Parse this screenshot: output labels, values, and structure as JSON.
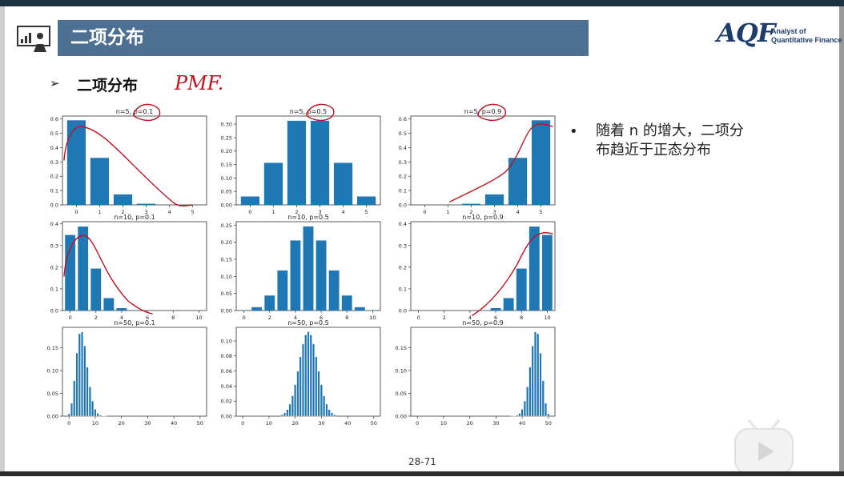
{
  "header": {
    "title": "二项分布"
  },
  "logo": {
    "big_text": "AQF",
    "line1": "Analyst of",
    "line2": "Quantitative Finance"
  },
  "section": {
    "title": "二项分布",
    "handwriting": "PMF."
  },
  "bullet": {
    "text": "随着 n 的增大，二项分布趋近于正态分布"
  },
  "page": {
    "number": "28-71"
  },
  "icons": {
    "presentation": "presentation-board-icon",
    "play": "play-icon",
    "bullet": "bullet-dot-icon"
  },
  "colors": {
    "banner": "#4d6f92",
    "bar": "#1f77b4",
    "ink": "#c0111f"
  },
  "chart_data": [
    {
      "type": "bar",
      "title": "n=5, p=0.1",
      "x": [
        0,
        1,
        2,
        3,
        4,
        5
      ],
      "values": [
        0.5905,
        0.3281,
        0.0729,
        0.0081,
        0.0005,
        0.0
      ],
      "xticks": [
        "0",
        "1",
        "2",
        "3",
        "4",
        "5"
      ],
      "ylim": [
        0,
        0.62
      ],
      "yticks": [
        0.0,
        0.1,
        0.2,
        0.3,
        0.4,
        0.5,
        0.6
      ],
      "ytick_labels": [
        "0.0",
        "0.1",
        "0.2",
        "0.3",
        "0.4",
        "0.5",
        "0.6"
      ]
    },
    {
      "type": "bar",
      "title": "n=5, p=0.5",
      "x": [
        0,
        1,
        2,
        3,
        4,
        5
      ],
      "values": [
        0.03125,
        0.15625,
        0.3125,
        0.3125,
        0.15625,
        0.03125
      ],
      "xticks": [
        "0",
        "1",
        "2",
        "3",
        "4",
        "5"
      ],
      "ylim": [
        0,
        0.33
      ],
      "yticks": [
        0.0,
        0.05,
        0.1,
        0.15,
        0.2,
        0.25,
        0.3
      ],
      "ytick_labels": [
        "0.00",
        "0.05",
        "0.10",
        "0.15",
        "0.20",
        "0.25",
        "0.30"
      ]
    },
    {
      "type": "bar",
      "title": "n=5, p=0.9",
      "x": [
        0,
        1,
        2,
        3,
        4,
        5
      ],
      "values": [
        0.0,
        0.0005,
        0.0081,
        0.0729,
        0.3281,
        0.5905
      ],
      "xticks": [
        "0",
        "1",
        "2",
        "3",
        "4",
        "5"
      ],
      "ylim": [
        0,
        0.62
      ],
      "yticks": [
        0.0,
        0.1,
        0.2,
        0.3,
        0.4,
        0.5,
        0.6
      ],
      "ytick_labels": [
        "0.0",
        "0.1",
        "0.2",
        "0.3",
        "0.4",
        "0.5",
        "0.6"
      ]
    },
    {
      "type": "bar",
      "title": "n=10, p=0.1",
      "x": [
        0,
        1,
        2,
        3,
        4,
        5,
        6,
        7,
        8,
        9,
        10
      ],
      "values": [
        0.3487,
        0.3874,
        0.1937,
        0.0574,
        0.0112,
        0.0015,
        0.0001,
        0,
        0,
        0,
        0
      ],
      "xticks": [
        "0",
        "2",
        "4",
        "6",
        "8",
        "10"
      ],
      "ylim": [
        0,
        0.41
      ],
      "yticks": [
        0.0,
        0.1,
        0.2,
        0.3,
        0.4
      ],
      "ytick_labels": [
        "0.0",
        "0.1",
        "0.2",
        "0.3",
        "0.4"
      ]
    },
    {
      "type": "bar",
      "title": "n=10, p=0.5",
      "x": [
        0,
        1,
        2,
        3,
        4,
        5,
        6,
        7,
        8,
        9,
        10
      ],
      "values": [
        0.001,
        0.0098,
        0.0439,
        0.1172,
        0.2051,
        0.2461,
        0.2051,
        0.1172,
        0.0439,
        0.0098,
        0.001
      ],
      "xticks": [
        "0",
        "2",
        "4",
        "6",
        "8",
        "10"
      ],
      "ylim": [
        0,
        0.26
      ],
      "yticks": [
        0.0,
        0.05,
        0.1,
        0.15,
        0.2,
        0.25
      ],
      "ytick_labels": [
        "0.00",
        "0.05",
        "0.10",
        "0.15",
        "0.20",
        "0.25"
      ]
    },
    {
      "type": "bar",
      "title": "n=10, p=0.9",
      "x": [
        0,
        1,
        2,
        3,
        4,
        5,
        6,
        7,
        8,
        9,
        10
      ],
      "values": [
        0,
        0,
        0,
        0,
        0.0001,
        0.0015,
        0.0112,
        0.0574,
        0.1937,
        0.3874,
        0.3487
      ],
      "xticks": [
        "0",
        "2",
        "4",
        "6",
        "8",
        "10"
      ],
      "ylim": [
        0,
        0.41
      ],
      "yticks": [
        0.0,
        0.1,
        0.2,
        0.3,
        0.4
      ],
      "ytick_labels": [
        "0.0",
        "0.1",
        "0.2",
        "0.3",
        "0.4"
      ]
    },
    {
      "type": "bar",
      "title": "n=50, p=0.1",
      "x": [
        0,
        1,
        2,
        3,
        4,
        5,
        6,
        7,
        8,
        9,
        10,
        11,
        12,
        13,
        14
      ],
      "values": [
        0.0052,
        0.0286,
        0.0779,
        0.1386,
        0.1809,
        0.1849,
        0.1541,
        0.1076,
        0.0643,
        0.0333,
        0.0152,
        0.0061,
        0.0022,
        0.0007,
        0.0002
      ],
      "xticks": [
        "0",
        "10",
        "20",
        "30",
        "40",
        "50"
      ],
      "xmax": 50,
      "ylim": [
        0,
        0.195
      ],
      "yticks": [
        0.0,
        0.05,
        0.1,
        0.15
      ],
      "ytick_labels": [
        "0.00",
        "0.05",
        "0.10",
        "0.15"
      ]
    },
    {
      "type": "bar",
      "title": "n=50, p=0.5",
      "x": [
        15,
        16,
        17,
        18,
        19,
        20,
        21,
        22,
        23,
        24,
        25,
        26,
        27,
        28,
        29,
        30,
        31,
        32,
        33,
        34,
        35
      ],
      "values": [
        0.002,
        0.0044,
        0.0087,
        0.016,
        0.027,
        0.0419,
        0.0598,
        0.0788,
        0.096,
        0.108,
        0.1123,
        0.108,
        0.096,
        0.0788,
        0.0598,
        0.0419,
        0.027,
        0.016,
        0.0087,
        0.0044,
        0.002
      ],
      "xticks": [
        "0",
        "10",
        "20",
        "30",
        "40",
        "50"
      ],
      "xmax": 50,
      "ylim": [
        0,
        0.118
      ],
      "yticks": [
        0.0,
        0.02,
        0.04,
        0.06,
        0.08,
        0.1
      ],
      "ytick_labels": [
        "0.00",
        "0.02",
        "0.04",
        "0.06",
        "0.08",
        "0.10"
      ]
    },
    {
      "type": "bar",
      "title": "n=50, p=0.9",
      "x": [
        36,
        37,
        38,
        39,
        40,
        41,
        42,
        43,
        44,
        45,
        46,
        47,
        48,
        49,
        50
      ],
      "values": [
        0.0002,
        0.0007,
        0.0022,
        0.0061,
        0.0152,
        0.0333,
        0.0643,
        0.1076,
        0.1541,
        0.1849,
        0.1809,
        0.1386,
        0.0779,
        0.0286,
        0.0052
      ],
      "xticks": [
        "0",
        "10",
        "20",
        "30",
        "40",
        "50"
      ],
      "xmax": 50,
      "ylim": [
        0,
        0.195
      ],
      "yticks": [
        0.0,
        0.05,
        0.1,
        0.15
      ],
      "ytick_labels": [
        "0.00",
        "0.05",
        "0.10",
        "0.15"
      ]
    }
  ]
}
